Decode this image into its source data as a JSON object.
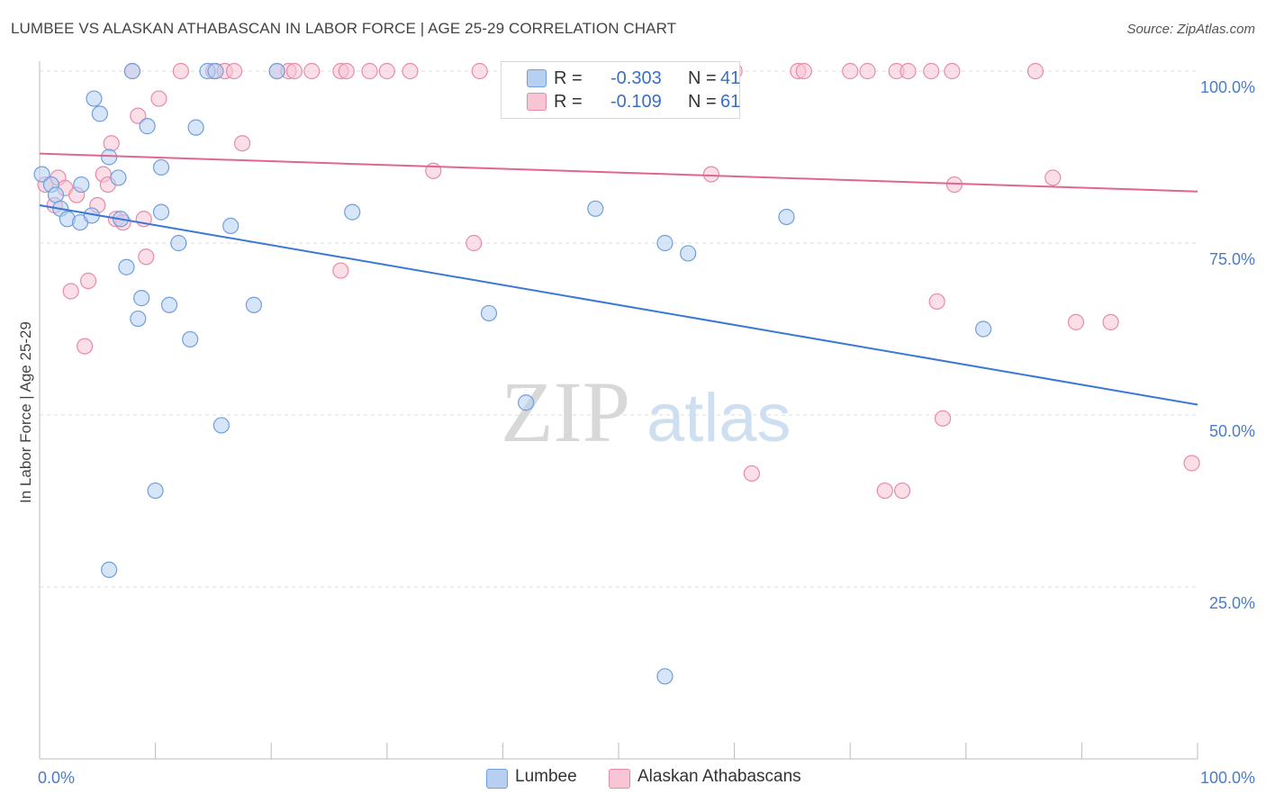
{
  "title": "LUMBEE VS ALASKAN ATHABASCAN IN LABOR FORCE | AGE 25-29 CORRELATION CHART",
  "source": "Source: ZipAtlas.com",
  "watermark": {
    "zip": "ZIP",
    "atlas": "atlas"
  },
  "legend": {
    "rows": [
      {
        "r_label": "R =",
        "r_value": "-0.303",
        "n_label": "N =",
        "n_value": "41"
      },
      {
        "r_label": "R =",
        "r_value": "-0.109",
        "n_label": "N =",
        "n_value": "61"
      }
    ]
  },
  "bottom_legend": {
    "lumbee": "Lumbee",
    "alaskan": "Alaskan Athabascans"
  },
  "colors": {
    "lumbee_fill": "#b7d0f2",
    "lumbee_stroke": "#6f9fdc",
    "lumbee_line": "#3a78d4",
    "alaskan_fill": "#f8c5d4",
    "alaskan_stroke": "#e88aa8",
    "alaskan_line": "#e06690",
    "axis_text": "#4a7cc9",
    "grid": "#dddddd"
  },
  "chart_data": {
    "type": "scatter",
    "title": "LUMBEE VS ALASKAN ATHABASCAN IN LABOR FORCE | AGE 25-29 CORRELATION CHART",
    "xlabel": "",
    "ylabel": "In Labor Force | Age 25-29",
    "xlim": [
      0,
      100
    ],
    "ylim": [
      0,
      105
    ],
    "x_tick_labels": {
      "min": "0.0%",
      "max": "100.0%"
    },
    "y_ticks": [
      {
        "value": 25,
        "label": "25.0%"
      },
      {
        "value": 50,
        "label": "50.0%"
      },
      {
        "value": 75,
        "label": "75.0%"
      },
      {
        "value": 100,
        "label": "100.0%"
      }
    ],
    "series": [
      {
        "name": "Lumbee",
        "R": -0.303,
        "N": 41,
        "trend": {
          "x": [
            0,
            100
          ],
          "y": [
            80.5,
            51.5
          ]
        },
        "points": [
          [
            0.2,
            85.0
          ],
          [
            1.0,
            83.5
          ],
          [
            1.4,
            82.0
          ],
          [
            1.8,
            80.0
          ],
          [
            2.4,
            78.5
          ],
          [
            3.5,
            78.0
          ],
          [
            4.5,
            79.0
          ],
          [
            3.6,
            83.5
          ],
          [
            4.7,
            96.0
          ],
          [
            5.2,
            93.8
          ],
          [
            6.0,
            87.5
          ],
          [
            6.8,
            84.5
          ],
          [
            7.0,
            78.5
          ],
          [
            7.5,
            71.5
          ],
          [
            8.0,
            100.0
          ],
          [
            8.5,
            64.0
          ],
          [
            8.8,
            67.0
          ],
          [
            9.3,
            92.0
          ],
          [
            10.0,
            39.0
          ],
          [
            10.5,
            86.0
          ],
          [
            10.5,
            79.5
          ],
          [
            11.2,
            66.0
          ],
          [
            12.0,
            75.0
          ],
          [
            13.0,
            61.0
          ],
          [
            13.5,
            91.8
          ],
          [
            14.5,
            100.0
          ],
          [
            15.2,
            100.0
          ],
          [
            15.7,
            48.5
          ],
          [
            16.5,
            77.5
          ],
          [
            18.5,
            66.0
          ],
          [
            20.5,
            100.0
          ],
          [
            27.0,
            79.5
          ],
          [
            38.8,
            64.8
          ],
          [
            42.0,
            51.8
          ],
          [
            48.0,
            80.0
          ],
          [
            54.0,
            75.0
          ],
          [
            56.0,
            73.5
          ],
          [
            64.5,
            78.8
          ],
          [
            81.5,
            62.5
          ],
          [
            6.0,
            27.5
          ],
          [
            54.0,
            12.0
          ]
        ]
      },
      {
        "name": "Alaskan Athabascans",
        "R": -0.109,
        "N": 61,
        "trend": {
          "x": [
            0,
            100
          ],
          "y": [
            88.0,
            82.5
          ]
        },
        "points": [
          [
            0.5,
            83.5
          ],
          [
            1.3,
            80.5
          ],
          [
            1.6,
            84.5
          ],
          [
            2.2,
            83.0
          ],
          [
            2.7,
            68.0
          ],
          [
            3.2,
            82.0
          ],
          [
            3.9,
            60.0
          ],
          [
            4.2,
            69.5
          ],
          [
            5.0,
            80.5
          ],
          [
            5.5,
            85.0
          ],
          [
            5.9,
            83.5
          ],
          [
            6.2,
            89.5
          ],
          [
            6.6,
            78.5
          ],
          [
            7.2,
            78.0
          ],
          [
            8.0,
            100.0
          ],
          [
            8.5,
            93.5
          ],
          [
            9.0,
            78.5
          ],
          [
            9.2,
            73.0
          ],
          [
            10.3,
            96.0
          ],
          [
            12.2,
            100.0
          ],
          [
            15.0,
            100.0
          ],
          [
            16.0,
            100.0
          ],
          [
            16.8,
            100.0
          ],
          [
            17.5,
            89.5
          ],
          [
            20.5,
            100.0
          ],
          [
            21.5,
            100.0
          ],
          [
            22.0,
            100.0
          ],
          [
            23.5,
            100.0
          ],
          [
            26.0,
            100.0
          ],
          [
            26.5,
            100.0
          ],
          [
            26.0,
            71.0
          ],
          [
            28.5,
            100.0
          ],
          [
            30.0,
            100.0
          ],
          [
            32.0,
            100.0
          ],
          [
            34.0,
            85.5
          ],
          [
            37.5,
            75.0
          ],
          [
            38.0,
            100.0
          ],
          [
            42.0,
            100.0
          ],
          [
            48.0,
            100.0
          ],
          [
            53.0,
            100.0
          ],
          [
            58.0,
            85.0
          ],
          [
            60.0,
            100.0
          ],
          [
            61.5,
            41.5
          ],
          [
            65.5,
            100.0
          ],
          [
            66.0,
            100.0
          ],
          [
            70.0,
            100.0
          ],
          [
            71.5,
            100.0
          ],
          [
            73.0,
            39.0
          ],
          [
            74.0,
            100.0
          ],
          [
            74.5,
            39.0
          ],
          [
            75.0,
            100.0
          ],
          [
            77.0,
            100.0
          ],
          [
            77.5,
            66.5
          ],
          [
            78.0,
            49.5
          ],
          [
            78.8,
            100.0
          ],
          [
            79.0,
            83.5
          ],
          [
            86.0,
            100.0
          ],
          [
            87.5,
            84.5
          ],
          [
            89.5,
            63.5
          ],
          [
            92.5,
            63.5
          ],
          [
            99.5,
            43.0
          ]
        ]
      }
    ]
  }
}
